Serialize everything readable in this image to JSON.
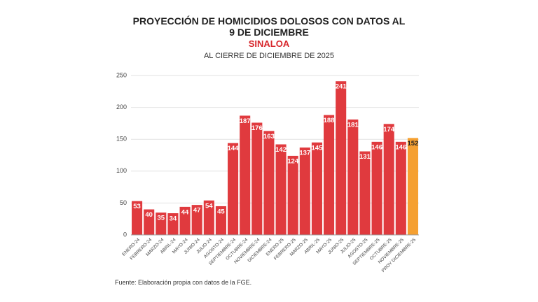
{
  "chart_data": {
    "type": "bar",
    "title": "PROYECCIÓN DE HOMICIDIOS DOLOSOS CON DATOS AL 9 DE DICIEMBRE",
    "subtitle": "SINALOA",
    "subtitle2": "AL CIERRE DE DICIEMBRE DE 2025",
    "source": "Fuente: Elaboración propia con datos de la FGE.",
    "categories": [
      "ENERO-24",
      "FEBRERO-24",
      "MARZO-24",
      "ABRIL-24",
      "MAYO-24",
      "JUNIO-24",
      "JULIO-24",
      "AGOSTO-24",
      "SEPTIEMBRE-24",
      "OCTUBRE-24",
      "NOVIEMBRE-24",
      "DICIEMBRE-24",
      "ENERO-25",
      "FEBRERO-25",
      "MARZO-25",
      "ABRIL-25",
      "MAYO-25",
      "JUNIO-25",
      "JULIO-25",
      "AGOSTO-25",
      "SEPTIEMBRE-25",
      "OCTUBRE-25",
      "NOVIEMBRE-25",
      "PROY DICIEMBRE-25"
    ],
    "values": [
      53,
      40,
      35,
      34,
      44,
      47,
      54,
      45,
      144,
      187,
      176,
      163,
      142,
      124,
      137,
      145,
      188,
      241,
      181,
      131,
      146,
      174,
      146,
      152
    ],
    "colors": [
      "#e03a3e",
      "#e03a3e",
      "#e03a3e",
      "#e03a3e",
      "#e03a3e",
      "#e03a3e",
      "#e03a3e",
      "#e03a3e",
      "#e03a3e",
      "#e03a3e",
      "#e03a3e",
      "#e03a3e",
      "#e03a3e",
      "#e03a3e",
      "#e03a3e",
      "#e03a3e",
      "#e03a3e",
      "#e03a3e",
      "#e03a3e",
      "#e03a3e",
      "#e03a3e",
      "#e03a3e",
      "#e03a3e",
      "#f5a031"
    ],
    "ylim": [
      0,
      250
    ],
    "yticks": [
      0,
      50,
      100,
      150,
      200,
      250
    ],
    "grid": true
  }
}
